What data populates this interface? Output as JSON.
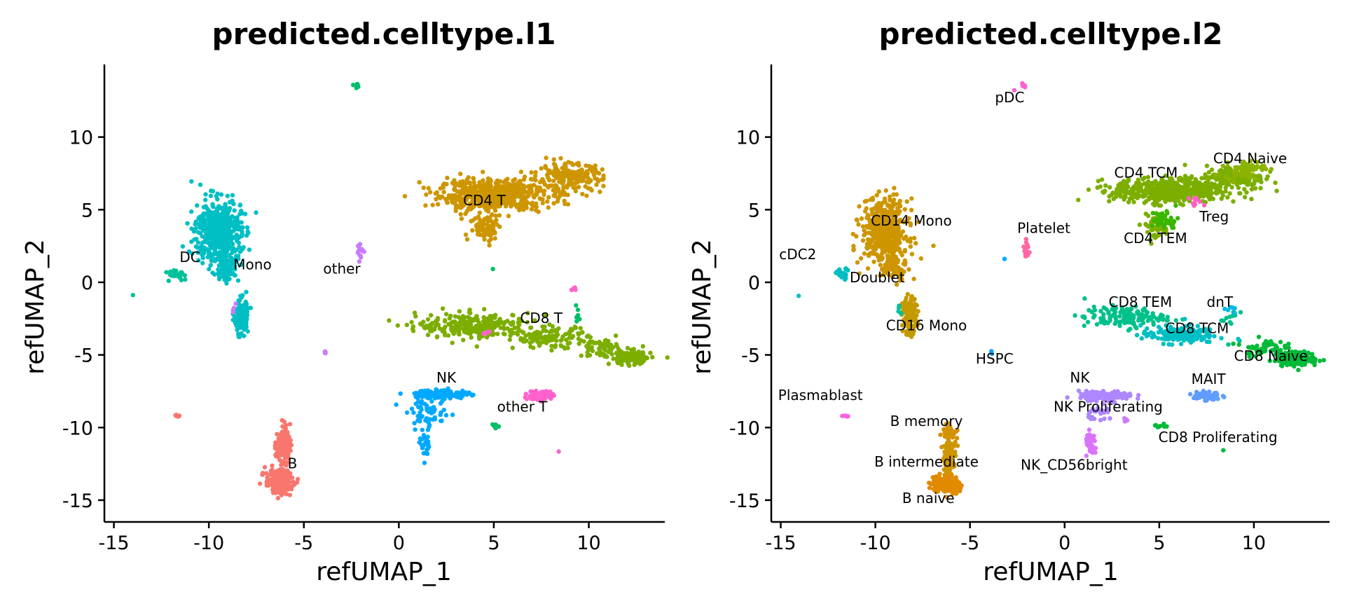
{
  "chart_data": [
    {
      "type": "scatter",
      "title": "predicted.celltype.l1",
      "xlabel": "refUMAP_1",
      "ylabel": "refUMAP_2",
      "xlim": [
        -15.5,
        14
      ],
      "ylim": [
        -16.5,
        15
      ],
      "xticks": [
        -15,
        -10,
        -5,
        0,
        5,
        10
      ],
      "yticks": [
        -15,
        -10,
        -5,
        0,
        5,
        10
      ],
      "grid": false,
      "legend": "none",
      "clusters": [
        {
          "label": "CD4 T",
          "label_pos": [
            4.5,
            5.3
          ],
          "color": "#CD9600",
          "shapes": [
            [
              5,
              6,
              2.4,
              0.9,
              600
            ],
            [
              9,
              7.2,
              1.4,
              0.8,
              200
            ],
            [
              4.6,
              3.8,
              0.7,
              0.8,
              80
            ]
          ]
        },
        {
          "label": "CD8 T",
          "label_pos": [
            7.5,
            -2.8
          ],
          "color": "#7CAE00",
          "shapes": [
            [
              4,
              -3,
              2.5,
              0.7,
              260
            ],
            [
              8,
              -3.8,
              1.6,
              0.6,
              120
            ],
            [
              12.2,
              -5.2,
              0.9,
              0.4,
              150
            ],
            [
              10.5,
              -4.5,
              0.9,
              0.5,
              50
            ]
          ]
        },
        {
          "label": "other T",
          "label_pos": [
            6.5,
            -8.9
          ],
          "color": "#00BE67",
          "shapes": [
            [
              5.1,
              -9.9,
              0.3,
              0.15,
              8
            ],
            [
              -2.2,
              13.5,
              0.15,
              0.1,
              6
            ],
            [
              5,
              0.9,
              0.05,
              0.05,
              1
            ],
            [
              9.4,
              -2.1,
              0.1,
              0.5,
              6
            ]
          ]
        },
        {
          "label": "NK",
          "label_pos": [
            2.5,
            -6.9
          ],
          "color": "#00A9FF",
          "shapes": [
            [
              2.3,
              -7.7,
              1.2,
              0.25,
              140
            ],
            [
              1.5,
              -9,
              0.9,
              0.8,
              60
            ],
            [
              1.4,
              -11.2,
              0.25,
              0.7,
              30
            ]
          ]
        },
        {
          "label": "Mono",
          "label_pos": [
            -7.7,
            0.9
          ],
          "color": "#00BFC4",
          "shapes": [
            [
              -9.5,
              3.5,
              1.0,
              1.8,
              500
            ],
            [
              -8.3,
              -2.3,
              0.3,
              1.0,
              150
            ],
            [
              -9,
              1,
              0.5,
              0.8,
              80
            ]
          ]
        },
        {
          "label": "DC",
          "label_pos": [
            -11,
            1.4
          ],
          "color": "#00C19A",
          "shapes": [
            [
              -11.8,
              0.6,
              0.4,
              0.3,
              25
            ],
            [
              -14,
              -0.9,
              0.05,
              0.05,
              1
            ]
          ]
        },
        {
          "label": "B",
          "label_pos": [
            -5.6,
            -12.8
          ],
          "color": "#F8766D",
          "shapes": [
            [
              -6.3,
              -13.7,
              0.6,
              0.7,
              200
            ],
            [
              -6.1,
              -11.2,
              0.3,
              1.1,
              120
            ],
            [
              -11.5,
              -9.2,
              0.3,
              0.05,
              5
            ]
          ]
        },
        {
          "label": "other",
          "label_pos": [
            -3,
            0.6
          ],
          "color": "#C77CFF",
          "shapes": [
            [
              -2,
              2.2,
              0.15,
              0.5,
              15
            ],
            [
              -3.9,
              -4.8,
              0.1,
              0.1,
              4
            ],
            [
              -8.7,
              -1.9,
              0.1,
              0.3,
              5
            ]
          ]
        },
        {
          "label": "",
          "label_pos": null,
          "color": "#FF61CC",
          "shapes": [
            [
              7.5,
              -7.8,
              0.6,
              0.3,
              60
            ],
            [
              8.4,
              -11.6,
              0.05,
              0.05,
              1
            ],
            [
              9.2,
              -0.4,
              0.1,
              0.3,
              4
            ],
            [
              4.7,
              -3.5,
              0.15,
              0.1,
              4
            ]
          ]
        }
      ]
    },
    {
      "type": "scatter",
      "title": "predicted.celltype.l2",
      "xlabel": "refUMAP_1",
      "ylabel": "refUMAP_2",
      "xlim": [
        -15.5,
        14
      ],
      "ylim": [
        -16.5,
        15
      ],
      "xticks": [
        -15,
        -10,
        -5,
        0,
        5,
        10
      ],
      "yticks": [
        -15,
        -10,
        -5,
        0,
        5,
        10
      ],
      "grid": false,
      "legend": "none",
      "clusters": [
        {
          "label": "CD4 TCM",
          "label_pos": [
            4.3,
            7.2
          ],
          "color": "#7CAE00",
          "shapes": [
            [
              5.5,
              6.3,
              2.4,
              0.7,
              550
            ],
            [
              9,
              7.2,
              1.3,
              0.7,
              180
            ],
            [
              4.8,
              3.8,
              0.6,
              0.7,
              50
            ]
          ]
        },
        {
          "label": "CD4 Naive",
          "label_pos": [
            9.8,
            8.2
          ],
          "color": "#8BB300",
          "shapes": [
            [
              9.5,
              7.8,
              0.9,
              0.5,
              60
            ]
          ]
        },
        {
          "label": "Treg",
          "label_pos": [
            7.9,
            4.2
          ],
          "color": "#FF61C3",
          "shapes": [
            [
              7,
              5.5,
              0.3,
              0.3,
              10
            ]
          ]
        },
        {
          "label": "CD4 TEM",
          "label_pos": [
            4.8,
            2.7
          ],
          "color": "#39B600",
          "shapes": [
            [
              5.3,
              4.3,
              0.6,
              0.6,
              40
            ]
          ]
        },
        {
          "label": "CD8 TEM",
          "label_pos": [
            4,
            -1.7
          ],
          "color": "#00C08B",
          "shapes": [
            [
              3.2,
              -2.4,
              1.8,
              0.6,
              140
            ],
            [
              8.7,
              -2.5,
              0.4,
              1.0,
              12
            ]
          ]
        },
        {
          "label": "CD8 TCM",
          "label_pos": [
            7,
            -3.5
          ],
          "color": "#00BFC4",
          "shapes": [
            [
              6,
              -3.6,
              1.6,
              0.5,
              160
            ]
          ]
        },
        {
          "label": "dnT",
          "label_pos": [
            8.2,
            -1.7
          ],
          "color": "#00B9E3",
          "shapes": [
            [
              8.7,
              -1.8,
              0.2,
              0.3,
              6
            ]
          ]
        },
        {
          "label": "CD8 Naive",
          "label_pos": [
            10.9,
            -5.4
          ],
          "color": "#00BA38",
          "shapes": [
            [
              12.3,
              -5.3,
              0.9,
              0.4,
              170
            ],
            [
              10.5,
              -4.5,
              0.9,
              0.5,
              60
            ]
          ]
        },
        {
          "label": "MAIT",
          "label_pos": [
            7.6,
            -7.0
          ],
          "color": "#619CFF",
          "shapes": [
            [
              7.5,
              -7.8,
              0.6,
              0.3,
              60
            ]
          ]
        },
        {
          "label": "CD8 Proliferating",
          "label_pos": [
            8.1,
            -11.0
          ],
          "color": "#00BA38",
          "shapes": [
            [
              5.1,
              -9.9,
              0.3,
              0.15,
              8
            ],
            [
              8.4,
              -11.6,
              0.05,
              0.05,
              1
            ]
          ]
        },
        {
          "label": "NK",
          "label_pos": [
            0.8,
            -6.9
          ],
          "color": "#AE87FF",
          "shapes": [
            [
              2.2,
              -7.8,
              1.2,
              0.25,
              140
            ],
            [
              2,
              -9,
              0.6,
              0.5,
              25
            ]
          ]
        },
        {
          "label": "NK Proliferating",
          "label_pos": [
            2.3,
            -8.9
          ],
          "color": "#C77CFF",
          "shapes": [
            [
              3.2,
              -9.6,
              0.2,
              0.15,
              5
            ]
          ]
        },
        {
          "label": "NK_CD56bright",
          "label_pos": [
            0.5,
            -12.9
          ],
          "color": "#DB72FB",
          "shapes": [
            [
              1.4,
              -11.2,
              0.25,
              0.7,
              40
            ]
          ]
        },
        {
          "label": "pDC",
          "label_pos": [
            -2.9,
            12.4
          ],
          "color": "#FF61CC",
          "shapes": [
            [
              -2.2,
              13.5,
              0.15,
              0.1,
              6
            ],
            [
              -2.7,
              13.2,
              0.05,
              0.05,
              1
            ]
          ]
        },
        {
          "label": "Platelet",
          "label_pos": [
            -1.1,
            3.4
          ],
          "color": "#FF67A4",
          "shapes": [
            [
              -2,
              2.2,
              0.15,
              0.5,
              15
            ]
          ]
        },
        {
          "label": "HSPC",
          "label_pos": [
            -3.7,
            -5.6
          ],
          "color": "#00A9FF",
          "shapes": [
            [
              -3.9,
              -4.8,
              0.1,
              0.1,
              4
            ],
            [
              -3.2,
              1.6,
              0.05,
              0.05,
              1
            ]
          ]
        },
        {
          "label": "CD14 Mono",
          "label_pos": [
            -8.1,
            3.9
          ],
          "color": "#CD9600",
          "shapes": [
            [
              -9.5,
              3.5,
              1.0,
              1.8,
              500
            ],
            [
              -9,
              1,
              0.5,
              0.8,
              80
            ]
          ]
        },
        {
          "label": "CD16 Mono",
          "label_pos": [
            -7.3,
            -3.3
          ],
          "color": "#C59900",
          "shapes": [
            [
              -8.2,
              -2.3,
              0.3,
              1.0,
              150
            ]
          ]
        },
        {
          "label": "cDC2",
          "label_pos": [
            -14.1,
            1.6
          ],
          "color": "#00BFC4",
          "shapes": [
            [
              -11.8,
              0.6,
              0.4,
              0.3,
              25
            ],
            [
              -14,
              -0.9,
              0.05,
              0.05,
              1
            ]
          ]
        },
        {
          "label": "Doublet",
          "label_pos": [
            -9.9,
            0.0
          ],
          "color": "#00C19F",
          "shapes": [
            [
              -8.7,
              -1.9,
              0.1,
              0.3,
              5
            ]
          ]
        },
        {
          "label": "Plasmablast",
          "label_pos": [
            -12.9,
            -8.1
          ],
          "color": "#F763E0",
          "shapes": [
            [
              -11.5,
              -9.2,
              0.3,
              0.05,
              5
            ]
          ]
        },
        {
          "label": "B memory",
          "label_pos": [
            -7.3,
            -9.9
          ],
          "color": "#D39200",
          "shapes": [
            [
              -6.1,
              -10.3,
              0.3,
              0.5,
              40
            ]
          ]
        },
        {
          "label": "B intermediate",
          "label_pos": [
            -7.3,
            -12.7
          ],
          "color": "#CD9600",
          "shapes": [
            [
              -6.1,
              -12,
              0.3,
              0.9,
              100
            ]
          ]
        },
        {
          "label": "B naive",
          "label_pos": [
            -7.2,
            -15.2
          ],
          "color": "#E18A00",
          "shapes": [
            [
              -6.3,
              -13.9,
              0.6,
              0.5,
              180
            ]
          ]
        }
      ]
    }
  ]
}
